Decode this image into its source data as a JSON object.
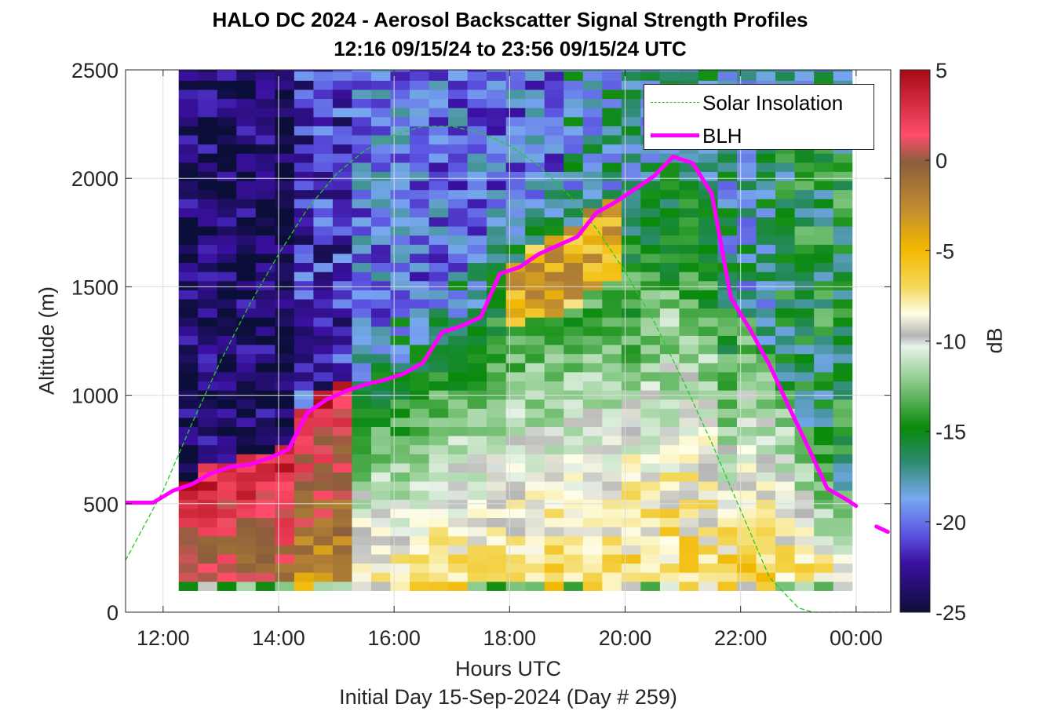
{
  "chart_data": {
    "type": "heatmap",
    "title": "HALO DC 2024 - Aerosol Backscatter Signal Strength Profiles",
    "subtitle": "12:16 09/15/24 to 23:56 09/15/24  UTC",
    "xlabel": "Hours UTC",
    "xsublabel": "Initial Day 15-Sep-2024 (Day # 259)",
    "ylabel": "Altitude (m)",
    "colorbar_label": "dB",
    "xlim": [
      11.35,
      24.6
    ],
    "ylim": [
      0,
      2500
    ],
    "x_ticks": [
      12,
      14,
      16,
      18,
      20,
      22,
      24
    ],
    "x_tick_labels": [
      "12:00",
      "14:00",
      "16:00",
      "18:00",
      "20:00",
      "22:00",
      "00:00"
    ],
    "y_ticks": [
      0,
      500,
      1000,
      1500,
      2000,
      2500
    ],
    "y_tick_labels": [
      "0",
      "500",
      "1000",
      "1500",
      "2000",
      "2500"
    ],
    "clim": [
      -25,
      5
    ],
    "colorbar_ticks": [
      5,
      0,
      -5,
      -10,
      -15,
      -20,
      -25
    ],
    "colorbar_tick_labels": [
      "5",
      "0",
      "-5",
      "-10",
      "-15",
      "-20",
      "-25"
    ],
    "grid": true,
    "legend_placement": "top-right",
    "data_x_range": [
      12.27,
      23.93
    ],
    "data_y_range": [
      100,
      2500
    ],
    "bin_minutes": 20,
    "bin_height_m": 42,
    "series": [
      {
        "name": "Solar Insolation",
        "style": "dashed",
        "color": "#22cc22",
        "x": [
          11.35,
          12.0,
          12.5,
          13.0,
          13.5,
          14.0,
          14.5,
          15.0,
          15.5,
          16.0,
          16.5,
          17.0,
          17.5,
          18.0,
          18.5,
          19.0,
          19.5,
          20.0,
          20.5,
          21.0,
          21.5,
          22.0,
          22.5,
          23.0,
          23.25,
          23.5,
          24.0,
          24.5
        ],
        "y": [
          240,
          560,
          870,
          1160,
          1420,
          1650,
          1860,
          2020,
          2130,
          2200,
          2240,
          2240,
          2210,
          2150,
          2060,
          1930,
          1770,
          1570,
          1340,
          1070,
          780,
          470,
          160,
          20,
          0,
          0,
          0,
          0
        ]
      },
      {
        "name": "BLH",
        "style": "solid",
        "color": "#ff00ff",
        "x": [
          11.35,
          11.83,
          12.17,
          12.5,
          12.83,
          13.17,
          13.5,
          13.83,
          14.17,
          14.5,
          14.83,
          15.17,
          15.5,
          15.83,
          16.17,
          16.5,
          16.83,
          17.17,
          17.5,
          17.83,
          18.17,
          18.5,
          18.83,
          19.17,
          19.5,
          19.83,
          20.17,
          20.5,
          20.83,
          21.17,
          21.5,
          21.83,
          22.17,
          22.5,
          22.83,
          23.17,
          23.5,
          23.83,
          24.0
        ],
        "y": [
          505,
          505,
          560,
          590,
          640,
          670,
          680,
          710,
          750,
          920,
          980,
          1020,
          1050,
          1070,
          1100,
          1150,
          1290,
          1320,
          1360,
          1560,
          1590,
          1650,
          1690,
          1730,
          1840,
          1890,
          1950,
          2010,
          2100,
          2070,
          1930,
          1450,
          1300,
          1140,
          950,
          760,
          570,
          520,
          490
        ]
      },
      {
        "name": "",
        "style": "solid",
        "color": "#ff00ff",
        "x": [
          24.35,
          24.55
        ],
        "y": [
          395,
          370
        ]
      }
    ]
  }
}
